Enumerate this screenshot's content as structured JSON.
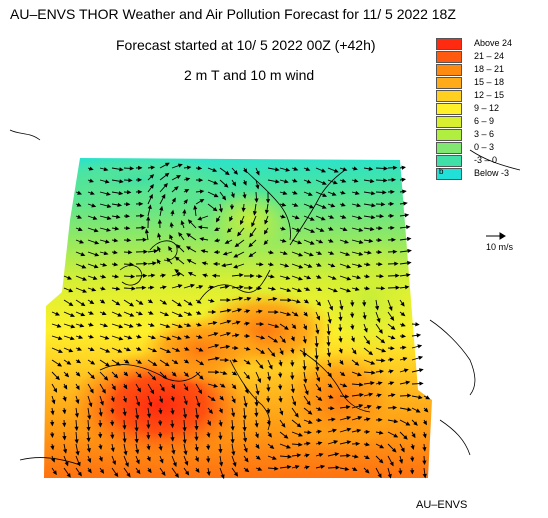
{
  "map": {
    "title": "AU–ENVS THOR Weather and Air Pollution Forecast for 11/ 5 2022  18Z",
    "subtitle": "Forecast started at 10/ 5 2022  00Z (+42h)",
    "variable": "2 m T and 10 m wind",
    "footer": "AU–ENVS",
    "wind_reference": "10 m/s",
    "legend": [
      {
        "label": "Above    24",
        "color": "#ff2a10"
      },
      {
        "label": "21  –  24",
        "color": "#ff5a10"
      },
      {
        "label": "18  –  21",
        "color": "#ff8a10"
      },
      {
        "label": "15  –  18",
        "color": "#ffaa18"
      },
      {
        "label": "12  –  15",
        "color": "#ffd020"
      },
      {
        "label": "9  –  12",
        "color": "#fff02a"
      },
      {
        "label": "6  –   9",
        "color": "#d8f030"
      },
      {
        "label": "3  –   6",
        "color": "#b0ee40"
      },
      {
        "label": "0  –   3",
        "color": "#80e870"
      },
      {
        "label": "-3  –   0",
        "color": "#40e0a8"
      },
      {
        "label": "Below    -3",
        "color": "#20e0d8"
      }
    ],
    "below_marker": "b"
  }
}
